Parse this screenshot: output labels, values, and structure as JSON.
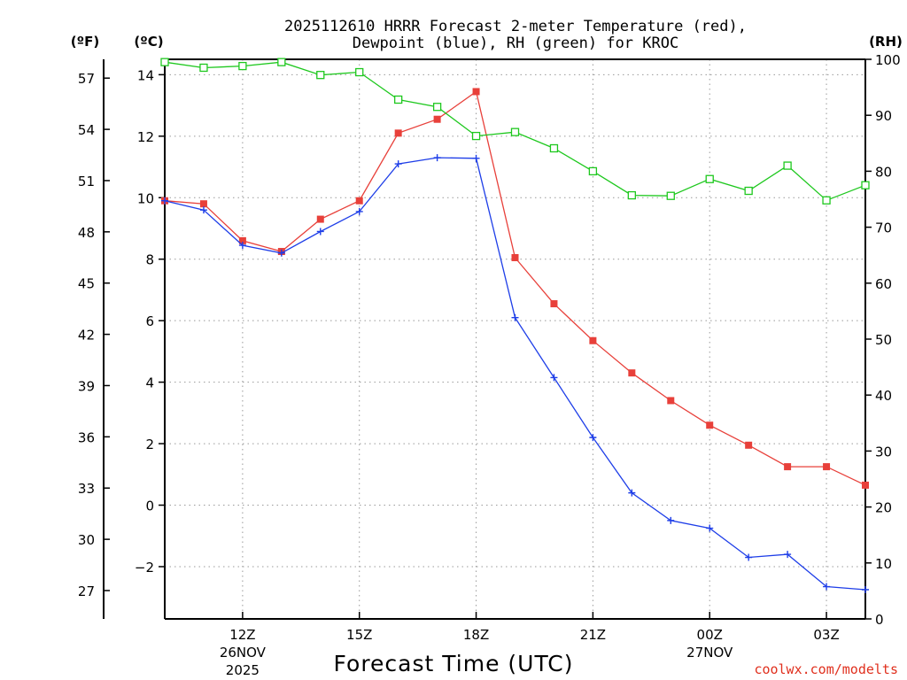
{
  "chart_data": {
    "type": "line",
    "title_line1": "2025112610 HRRR Forecast 2-meter Temperature (red),",
    "title_line2": "Dewpoint (blue), RH (green) for KROC",
    "xlabel": "Forecast Time (UTC)",
    "credit": "coolwx.com/modelts",
    "units": {
      "fahrenheit": "(ºF)",
      "celsius": "(ºC)",
      "rh": "(RH)"
    },
    "x_hours": [
      10,
      11,
      12,
      13,
      14,
      15,
      16,
      17,
      18,
      19,
      20,
      21,
      22,
      23,
      24,
      25,
      26,
      27,
      28
    ],
    "xlim": [
      10,
      28
    ],
    "x_ticks": [
      {
        "hour": 12,
        "label": "12Z",
        "date": "26NOV",
        "year": "2025"
      },
      {
        "hour": 15,
        "label": "15Z"
      },
      {
        "hour": 18,
        "label": "18Z"
      },
      {
        "hour": 21,
        "label": "21Z"
      },
      {
        "hour": 24,
        "label": "00Z",
        "date": "27NOV"
      },
      {
        "hour": 27,
        "label": "03Z"
      }
    ],
    "celsius_axis": {
      "ylim": [
        -3.7,
        14.5
      ],
      "ticks": [
        14,
        12,
        10,
        8,
        6,
        4,
        2,
        0,
        -2
      ],
      "tick_labels": [
        "14",
        "12",
        "10",
        "8",
        "6",
        "4",
        "2",
        "0",
        "−2"
      ]
    },
    "fahrenheit_axis": {
      "ticks": [
        57,
        54,
        51,
        48,
        45,
        42,
        39,
        36,
        33,
        30,
        27
      ]
    },
    "rh_axis": {
      "ylim": [
        0,
        100
      ],
      "ticks": [
        100,
        90,
        80,
        70,
        60,
        50,
        40,
        30,
        20,
        10,
        0
      ]
    },
    "series": [
      {
        "name": "Temperature",
        "axis": "celsius",
        "color": "#e8403a",
        "marker": "filled-square",
        "values": [
          9.9,
          9.8,
          8.6,
          8.25,
          9.3,
          9.9,
          12.1,
          12.55,
          13.45,
          8.05,
          6.55,
          5.35,
          4.3,
          3.4,
          2.6,
          1.95,
          1.25,
          1.25,
          0.65
        ]
      },
      {
        "name": "Dewpoint",
        "axis": "celsius",
        "color": "#1e3ee8",
        "marker": "plus",
        "values": [
          9.9,
          9.6,
          8.45,
          8.2,
          8.9,
          9.55,
          11.1,
          11.3,
          11.28,
          6.1,
          4.15,
          2.2,
          0.4,
          -0.5,
          -0.75,
          -1.7,
          -1.6,
          -2.65,
          -2.75
        ]
      },
      {
        "name": "RH",
        "axis": "rh",
        "color": "#1ec81e",
        "marker": "open-square",
        "values": [
          99.5,
          98.5,
          98.8,
          99.5,
          97.2,
          97.7,
          92.8,
          91.5,
          86.3,
          87.0,
          84.1,
          80.0,
          75.7,
          75.6,
          78.6,
          76.5,
          81.0,
          74.8,
          77.5
        ]
      }
    ]
  }
}
